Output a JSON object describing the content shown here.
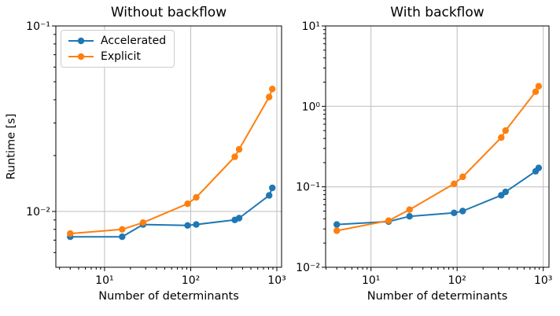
{
  "figure": {
    "background": "#ffffff"
  },
  "colors": {
    "accelerated": "#1f77b4",
    "explicit": "#ff7f0e",
    "grid": "#bdbdbd",
    "spine": "#000000",
    "text": "#000000"
  },
  "legend": {
    "items": [
      {
        "label": "Accelerated",
        "color": "#1f77b4"
      },
      {
        "label": "Explicit",
        "color": "#ff7f0e"
      }
    ],
    "position": "upper left"
  },
  "chart_data": [
    {
      "type": "line",
      "title": "Without backflow",
      "xlabel": "Number of determinants",
      "ylabel": "Runtime [s]",
      "xscale": "log",
      "yscale": "log",
      "grid": true,
      "xlim": [
        2.72,
        1135
      ],
      "ylim": [
        0.005,
        0.1
      ],
      "x_ticks": [
        10,
        100,
        1000
      ],
      "x_tick_labels": [
        "10¹",
        "10²",
        "10³"
      ],
      "y_ticks": [
        0.01,
        0.1
      ],
      "y_tick_labels": [
        "10⁻²",
        "10⁻¹"
      ],
      "x": [
        4,
        16,
        28,
        92,
        116,
        325,
        365,
        815,
        885
      ],
      "series": [
        {
          "name": "Accelerated",
          "color": "#1f77b4",
          "values": [
            0.0073,
            0.0073,
            0.0085,
            0.0084,
            0.0085,
            0.009,
            0.0092,
            0.0122,
            0.0134
          ]
        },
        {
          "name": "Explicit",
          "color": "#ff7f0e",
          "values": [
            0.0076,
            0.008,
            0.0087,
            0.011,
            0.0119,
            0.0197,
            0.0216,
            0.0414,
            0.0457
          ]
        }
      ]
    },
    {
      "type": "line",
      "title": "With backflow",
      "xlabel": "Number of determinants",
      "ylabel": "",
      "xscale": "log",
      "yscale": "log",
      "grid": true,
      "xlim": [
        2.97,
        1165
      ],
      "ylim": [
        0.01,
        10
      ],
      "x_ticks": [
        10,
        100,
        1000
      ],
      "x_tick_labels": [
        "10¹",
        "10²",
        "10³"
      ],
      "y_ticks": [
        0.01,
        0.1,
        1,
        10
      ],
      "y_tick_labels": [
        "10⁻²",
        "10⁻¹",
        "10⁰",
        "10¹"
      ],
      "x": [
        4,
        16,
        28,
        92,
        116,
        325,
        365,
        815,
        885
      ],
      "series": [
        {
          "name": "Accelerated",
          "color": "#1f77b4",
          "values": [
            0.034,
            0.037,
            0.043,
            0.0475,
            0.05,
            0.0785,
            0.0865,
            0.156,
            0.172
          ]
        },
        {
          "name": "Explicit",
          "color": "#ff7f0e",
          "values": [
            0.0285,
            0.038,
            0.052,
            0.109,
            0.133,
            0.41,
            0.5,
            1.52,
            1.78
          ]
        }
      ]
    }
  ]
}
